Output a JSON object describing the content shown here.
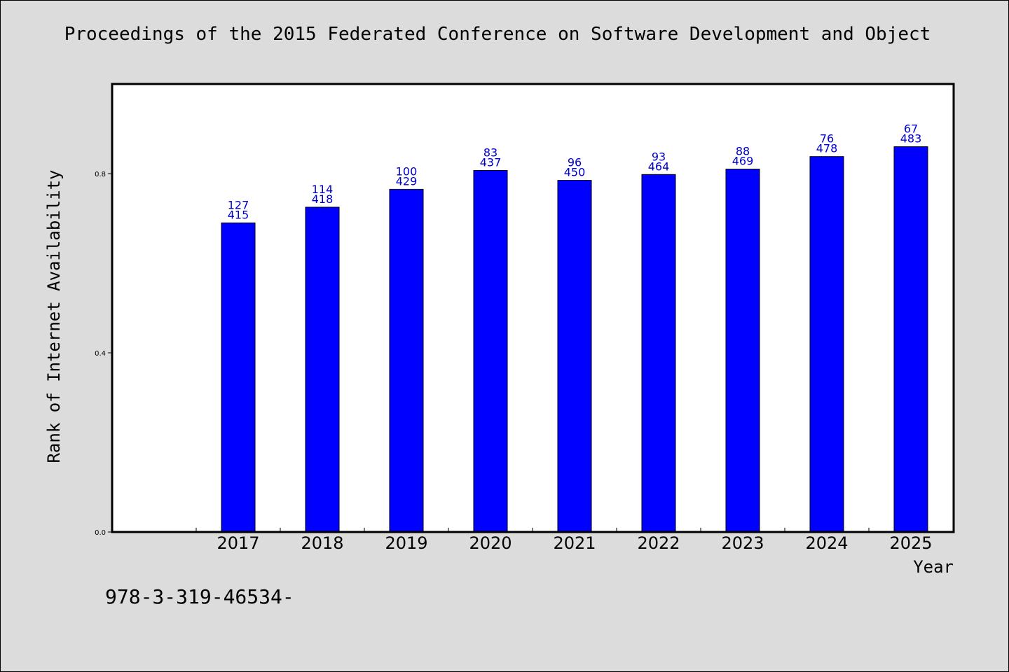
{
  "title": "Proceedings of the 2015 Federated Conference on Software Development and Object",
  "footer_text": "978-3-319-46534-",
  "colors": {
    "background": "#dcdcdc",
    "plot_background": "#ffffff",
    "bar": "#0000ff",
    "label": "#0000cc",
    "axis": "#000000"
  },
  "chart_data": {
    "type": "bar",
    "xlabel": "Year",
    "ylabel": "Rank of Internet Availability",
    "ylim": [
      0,
      1.0
    ],
    "yticks": [
      0.0,
      0.4,
      0.8
    ],
    "ytick_labels": [
      "0.0",
      "0.4",
      "0.8"
    ],
    "grid": false,
    "categories": [
      "2017",
      "2018",
      "2019",
      "2020",
      "2021",
      "2022",
      "2023",
      "2024",
      "2025"
    ],
    "values": [
      0.69,
      0.725,
      0.765,
      0.807,
      0.785,
      0.798,
      0.81,
      0.838,
      0.86
    ],
    "labels_top": [
      "127",
      "114",
      "100",
      "83",
      "96",
      "93",
      "88",
      "76",
      "67"
    ],
    "labels_bottom": [
      "415",
      "418",
      "429",
      "437",
      "450",
      "464",
      "469",
      "478",
      "483"
    ]
  }
}
